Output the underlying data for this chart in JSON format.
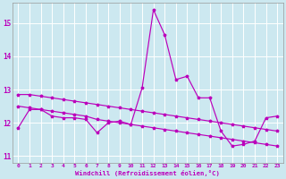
{
  "xlabel": "Windchill (Refroidissement éolien,°C)",
  "bg_color": "#cce8f0",
  "line_color": "#bb00bb",
  "grid_color": "#ffffff",
  "xmin": -0.5,
  "xmax": 23.5,
  "ymin": 10.8,
  "ymax": 15.6,
  "yticks": [
    11,
    12,
    13,
    14,
    15
  ],
  "xticks": [
    0,
    1,
    2,
    3,
    4,
    5,
    6,
    7,
    8,
    9,
    10,
    11,
    12,
    13,
    14,
    15,
    16,
    17,
    18,
    19,
    20,
    21,
    22,
    23
  ],
  "series1_x": [
    0,
    1,
    2,
    3,
    4,
    5,
    6,
    7,
    8,
    9,
    10,
    11,
    12,
    13,
    14,
    15,
    16,
    17,
    18,
    19,
    20,
    21,
    22,
    23
  ],
  "series1_y": [
    11.85,
    12.4,
    12.4,
    12.2,
    12.15,
    12.15,
    12.1,
    11.7,
    12.0,
    12.05,
    11.95,
    13.05,
    15.4,
    14.65,
    13.3,
    13.4,
    12.75,
    12.75,
    11.75,
    11.3,
    11.35,
    11.45,
    12.15,
    12.2
  ],
  "series2_x": [
    0,
    1,
    2,
    3,
    4,
    5,
    6,
    7,
    8,
    9,
    10,
    11,
    12,
    13,
    14,
    15,
    16,
    17,
    18,
    19,
    20,
    21,
    22,
    23
  ],
  "series2_y": [
    12.85,
    12.85,
    12.8,
    12.75,
    12.7,
    12.65,
    12.6,
    12.55,
    12.5,
    12.45,
    12.4,
    12.35,
    12.3,
    12.25,
    12.2,
    12.15,
    12.1,
    12.05,
    12.0,
    11.95,
    11.9,
    11.85,
    11.8,
    11.75
  ],
  "series3_x": [
    0,
    1,
    2,
    3,
    4,
    5,
    6,
    7,
    8,
    9,
    10,
    11,
    12,
    13,
    14,
    15,
    16,
    17,
    18,
    19,
    20,
    21,
    22,
    23
  ],
  "series3_y": [
    12.5,
    12.45,
    12.4,
    12.35,
    12.3,
    12.25,
    12.2,
    12.1,
    12.05,
    12.0,
    11.95,
    11.9,
    11.85,
    11.8,
    11.75,
    11.7,
    11.65,
    11.6,
    11.55,
    11.5,
    11.45,
    11.4,
    11.35,
    11.3
  ]
}
